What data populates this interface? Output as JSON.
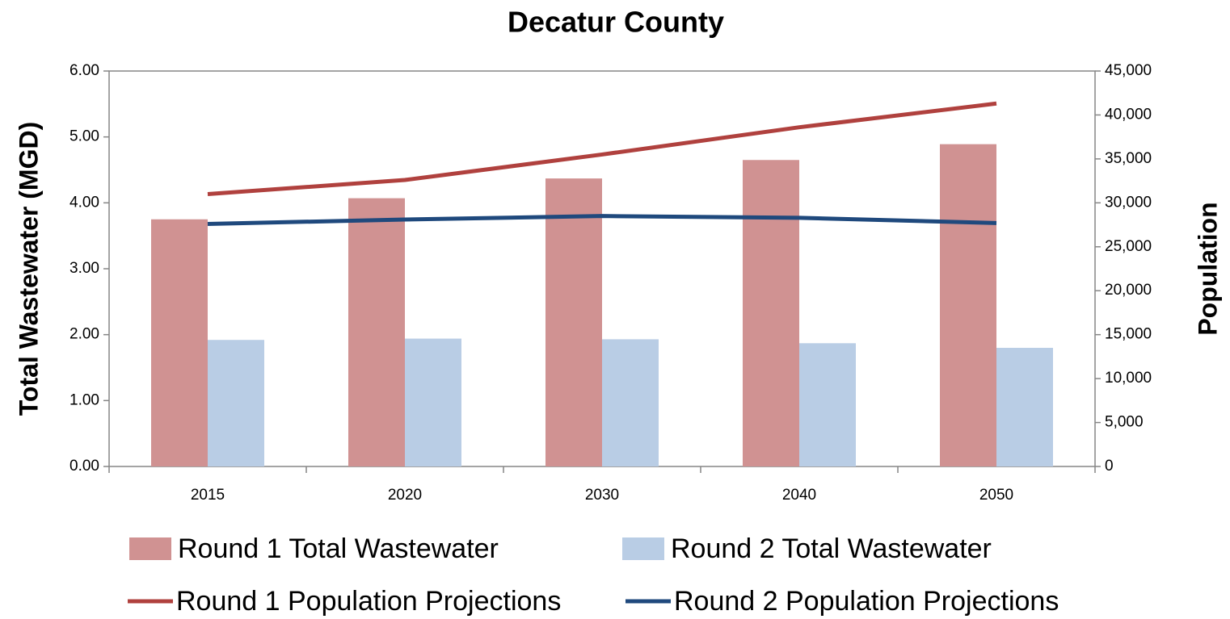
{
  "chart_data": {
    "type": "bar_line",
    "title": "Decatur County",
    "ylabel": "Total Wastewater (MGD)",
    "y2label": "Population",
    "categories": [
      "2015",
      "2020",
      "2030",
      "2040",
      "2050"
    ],
    "series": [
      {
        "name": "Round 1 Total Wastewater",
        "type": "bar",
        "color": "#d09292",
        "values": [
          3.75,
          4.07,
          4.37,
          4.65,
          4.89
        ]
      },
      {
        "name": "Round 2 Total Wastewater",
        "type": "bar",
        "color": "#b9cde5",
        "values": [
          1.92,
          1.94,
          1.93,
          1.87,
          1.8
        ]
      },
      {
        "name": "Round 1 Population Projections",
        "type": "line",
        "axis": "y2",
        "color": "#b0413e",
        "values": [
          31000,
          32600,
          35500,
          38600,
          41300
        ]
      },
      {
        "name": "Round 2 Population Projections",
        "type": "line",
        "axis": "y2",
        "color": "#1f497d",
        "values": [
          27600,
          28100,
          28500,
          28300,
          27700
        ]
      }
    ],
    "ylim": [
      0,
      6
    ],
    "yticks": [
      {
        "value": 0,
        "label": "0.00"
      },
      {
        "value": 1,
        "label": "1.00"
      },
      {
        "value": 2,
        "label": "2.00"
      },
      {
        "value": 3,
        "label": "3.00"
      },
      {
        "value": 4,
        "label": "4.00"
      },
      {
        "value": 5,
        "label": "5.00"
      },
      {
        "value": 6,
        "label": "6.00"
      }
    ],
    "y2lim": [
      0,
      45000
    ],
    "y2ticks": [
      0,
      {
        "value": 5000,
        "label": "5,000"
      },
      {
        "value": 10000,
        "label": "10,000"
      },
      {
        "value": 15000,
        "label": "15,000"
      },
      {
        "value": 20000,
        "label": "20,000"
      },
      {
        "value": 25000,
        "label": "25,000"
      },
      {
        "value": 30000,
        "label": "30,000"
      },
      {
        "value": 35000,
        "label": "35,000"
      },
      {
        "value": 40000,
        "label": "40,000"
      },
      {
        "value": 45000,
        "label": "45,000"
      }
    ],
    "legend": "bottom"
  }
}
